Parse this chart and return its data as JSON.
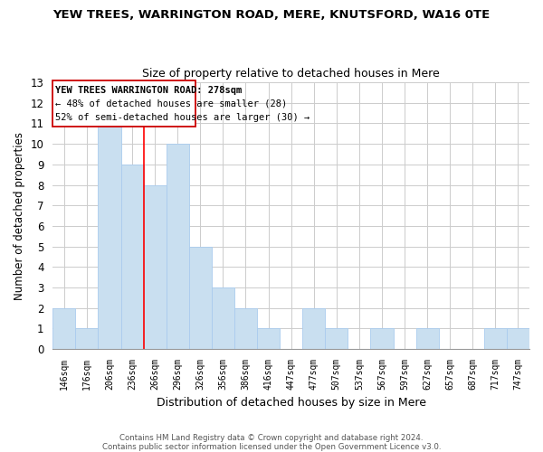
{
  "title": "YEW TREES, WARRINGTON ROAD, MERE, KNUTSFORD, WA16 0TE",
  "subtitle": "Size of property relative to detached houses in Mere",
  "xlabel": "Distribution of detached houses by size in Mere",
  "ylabel": "Number of detached properties",
  "bar_labels": [
    "146sqm",
    "176sqm",
    "206sqm",
    "236sqm",
    "266sqm",
    "296sqm",
    "326sqm",
    "356sqm",
    "386sqm",
    "416sqm",
    "447sqm",
    "477sqm",
    "507sqm",
    "537sqm",
    "567sqm",
    "597sqm",
    "627sqm",
    "657sqm",
    "687sqm",
    "717sqm",
    "747sqm"
  ],
  "bar_values": [
    2,
    1,
    11,
    9,
    8,
    10,
    5,
    3,
    2,
    1,
    0,
    2,
    1,
    0,
    1,
    0,
    1,
    0,
    0,
    1,
    1
  ],
  "bar_color": "#c9dff0",
  "bar_edge_color": "#aaccee",
  "red_line_x": 3.5,
  "ylim": [
    0,
    13
  ],
  "yticks": [
    0,
    1,
    2,
    3,
    4,
    5,
    6,
    7,
    8,
    9,
    10,
    11,
    12,
    13
  ],
  "annotation_title": "YEW TREES WARRINGTON ROAD: 278sqm",
  "annotation_line1": "← 48% of detached houses are smaller (28)",
  "annotation_line2": "52% of semi-detached houses are larger (30) →",
  "footer1": "Contains HM Land Registry data © Crown copyright and database right 2024.",
  "footer2": "Contains public sector information licensed under the Open Government Licence v3.0.",
  "background_color": "#ffffff",
  "grid_color": "#cccccc"
}
